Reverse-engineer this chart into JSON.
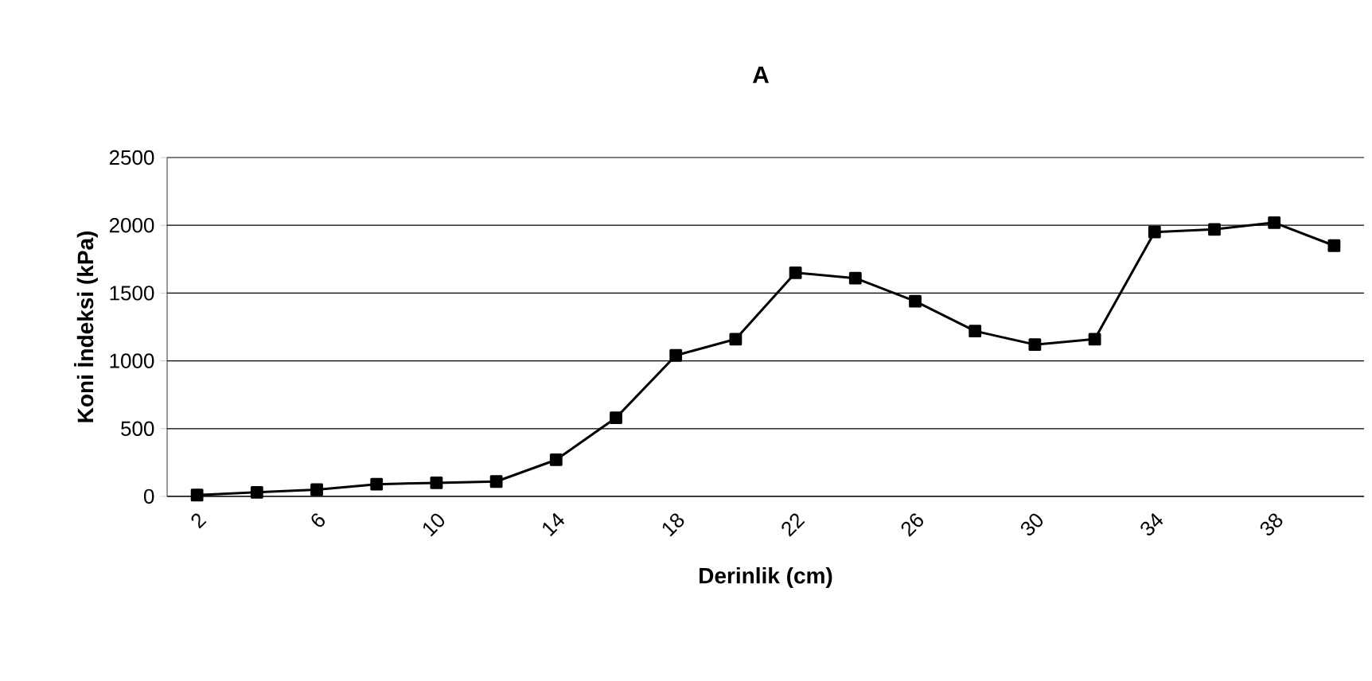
{
  "chart_data": {
    "type": "line",
    "title": "A",
    "xlabel": "Derinlik (cm)",
    "ylabel": "Koni İndeksi (kPa)",
    "categories": [
      "2",
      null,
      "6",
      null,
      "10",
      null,
      "14",
      null,
      "18",
      null,
      "22",
      null,
      "26",
      null,
      "30",
      null,
      "34",
      null,
      "38",
      null
    ],
    "series": [
      {
        "color": "#000000",
        "values": [
          10,
          30,
          50,
          90,
          100,
          110,
          270,
          580,
          1040,
          1160,
          1650,
          1610,
          1440,
          1220,
          1120,
          1160,
          1950,
          1970,
          2020,
          1850
        ]
      }
    ],
    "ylim": [
      0,
      2500
    ],
    "yticks": [
      0,
      500,
      1000,
      1500,
      2000,
      2500
    ],
    "grid": "y",
    "marker": "square",
    "line_style": "solid"
  }
}
